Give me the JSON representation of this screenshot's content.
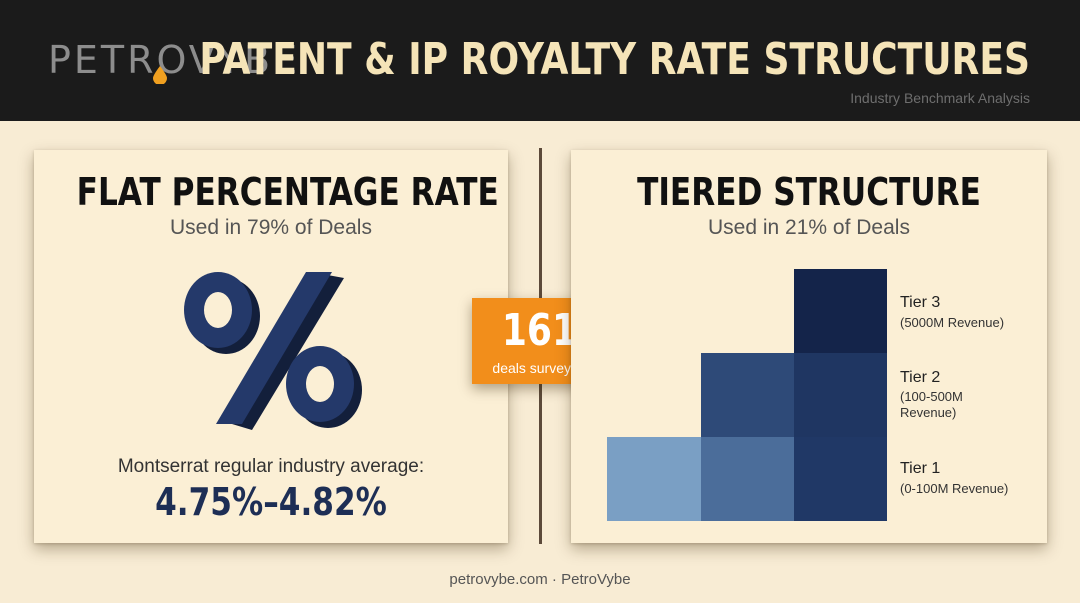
{
  "header": {
    "logo_text_1": "PETRO",
    "logo_text_2": "VYBE",
    "title": "PATENT & IP ROYALTY RATE STRUCTURES",
    "subtitle": "Industry Benchmark Analysis"
  },
  "flat": {
    "title": "FLAT PERCENTAGE RATE",
    "usage": "Used in 79% of Deals",
    "icon": "percent-icon",
    "avg_label": "Montserrat regular industry average:",
    "avg_value": "4.75%–4.82%"
  },
  "badge": {
    "number": "161",
    "label": "deals surveyed"
  },
  "tiered": {
    "title": "TIERED STRUCTURE",
    "usage": "Used in 21% of Deals",
    "tiers": [
      {
        "name": "Tier 3",
        "desc_line1": "(5000M Revenue)",
        "desc_line2": ""
      },
      {
        "name": "Tier 2",
        "desc_line1": "(100-500M",
        "desc_line2": "Revenue)"
      },
      {
        "name": "Tier 1",
        "desc_line1": "(0-100M Revenue)",
        "desc_line2": ""
      }
    ]
  },
  "footer": {
    "text": "petrovybe.com · PetroVybe"
  },
  "colors": {
    "header_bg": "#1b1b1b",
    "title": "#f5e4b8",
    "accent_orange": "#f28e1b",
    "navy": "#1d2e55",
    "background": "#f8ecd4"
  }
}
